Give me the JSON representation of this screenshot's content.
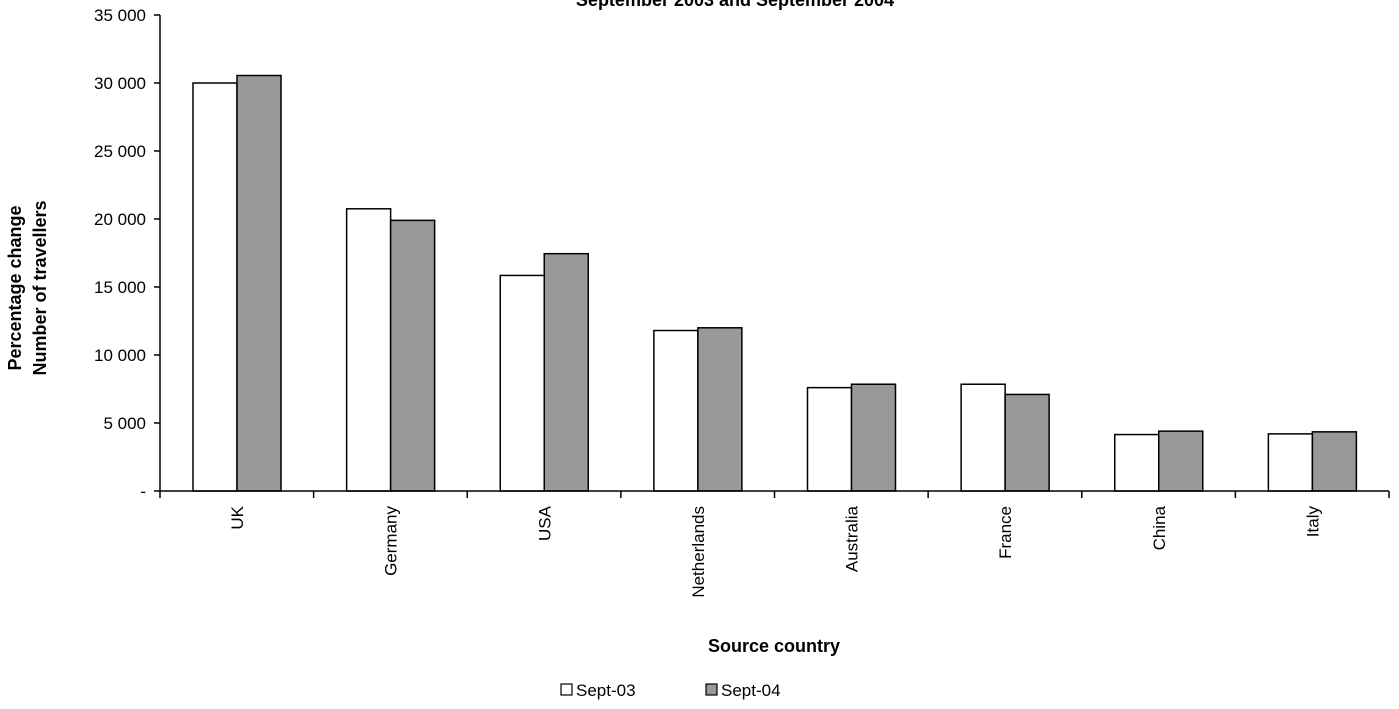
{
  "chart_data": {
    "type": "bar",
    "title": "September 2003 and September 2004",
    "xlabel": "Source country",
    "ylabel": "Number of travellers",
    "ylabel_secondary": "Percentage change",
    "categories": [
      "UK",
      "Germany",
      "USA",
      "Netherlands",
      "Australia",
      "France",
      "China",
      "Italy"
    ],
    "series": [
      {
        "name": "Sept-03",
        "color": "#ffffff",
        "values": [
          30000,
          20750,
          15850,
          11800,
          7600,
          7850,
          4150,
          4200
        ]
      },
      {
        "name": "Sept-04",
        "color": "#999999",
        "values": [
          30550,
          19900,
          17450,
          12000,
          7850,
          7100,
          4400,
          4350
        ]
      }
    ],
    "ylim": [
      0,
      35000
    ],
    "yticks": [
      0,
      5000,
      10000,
      15000,
      20000,
      25000,
      30000,
      35000
    ],
    "ytick_labels": [
      "-",
      "5 000",
      "10 000",
      "15 000",
      "20 000",
      "25 000",
      "30 000",
      "35 000"
    ],
    "grid": false,
    "legend_position": "bottom"
  }
}
